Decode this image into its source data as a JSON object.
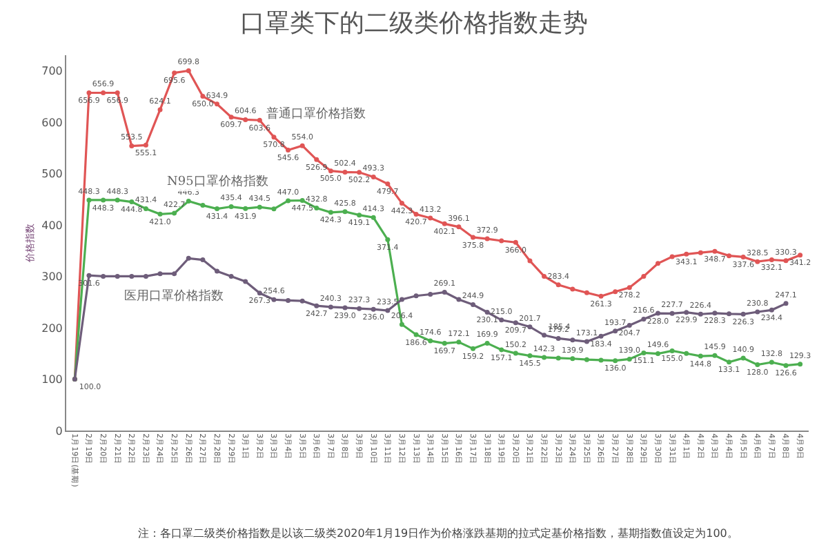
{
  "chart_data": {
    "type": "line",
    "title": "口罩类下的二级类价格指数走势",
    "ylabel": "价格指数",
    "categories": [
      "1月19日(基期)",
      "2月19日",
      "2月20日",
      "2月21日",
      "2月22日",
      "2月23日",
      "2月24日",
      "2月25日",
      "2月26日",
      "2月27日",
      "2月28日",
      "2月29日",
      "3月1日",
      "3月2日",
      "3月3日",
      "3月4日",
      "3月5日",
      "3月6日",
      "3月7日",
      "3月8日",
      "3月9日",
      "3月10日",
      "3月11日",
      "3月12日",
      "3月13日",
      "3月14日",
      "3月15日",
      "3月16日",
      "3月17日",
      "3月18日",
      "3月19日",
      "3月20日",
      "3月21日",
      "3月22日",
      "3月23日",
      "3月24日",
      "3月25日",
      "3月26日",
      "3月27日",
      "3月28日",
      "3月29日",
      "3月30日",
      "3月31日",
      "4月1日",
      "4月2日",
      "4月3日",
      "4月4日",
      "4月5日",
      "4月6日",
      "4月7日",
      "4月8日",
      "4月9日"
    ],
    "ylim": [
      0,
      730
    ],
    "yticks": [
      0,
      100,
      200,
      300,
      400,
      500,
      600,
      700
    ],
    "grid": false,
    "legend": false,
    "marker": "circle",
    "line_style": "solid",
    "series": [
      {
        "name": "普通口罩价格指数",
        "color": "#e05555",
        "values": [
          100.0,
          656.9,
          656.9,
          656.9,
          553.5,
          555.1,
          624.1,
          695.6,
          699.8,
          650.0,
          634.9,
          609.7,
          604.6,
          603.6,
          570.8,
          545.6,
          554.0,
          526.9,
          505.0,
          502.4,
          502.2,
          493.3,
          479.7,
          442.3,
          420.7,
          413.2,
          402.1,
          396.1,
          375.8,
          372.9,
          369,
          366.0,
          330,
          300,
          283.4,
          275,
          268,
          261.3,
          270,
          278.2,
          300,
          325,
          338,
          343.1,
          346,
          348.7,
          340,
          337.6,
          328.5,
          332.1,
          330.3,
          341.2
        ],
        "value_labels": [
          "100.0",
          "656.9",
          "656.9",
          "656.9",
          "553.5",
          "555.1",
          "624.1",
          "695.6",
          "699.8",
          "650.0",
          "634.9",
          "609.7",
          "604.6",
          "603.6",
          "570.8",
          "545.6",
          "554.0",
          "526.9",
          "505.0",
          "502.4",
          "502.2",
          "493.3",
          "479.7",
          "442.3",
          "420.7",
          "413.2",
          "402.1",
          "396.1",
          "375.8",
          "372.9",
          null,
          "366.0",
          null,
          null,
          "283.4",
          null,
          null,
          "261.3",
          null,
          "278.2",
          null,
          null,
          null,
          "343.1",
          null,
          "348.7",
          null,
          "337.6",
          "328.5",
          "332.1",
          "330.3",
          "341.2"
        ]
      },
      {
        "name": "N95口罩价格指数",
        "color": "#4caf50",
        "values": [
          100.0,
          448.3,
          448.3,
          448.3,
          444.8,
          431.4,
          421.0,
          422.7,
          446.3,
          438,
          431.4,
          435.4,
          431.9,
          434.5,
          431,
          447.0,
          447.5,
          432.8,
          424.3,
          425.8,
          419.1,
          414.3,
          371.4,
          206.4,
          186.6,
          174.6,
          169.7,
          172.1,
          159.2,
          169.9,
          157.1,
          150.2,
          145.5,
          142.3,
          141,
          139.9,
          138,
          137,
          136.0,
          139.0,
          151.1,
          149.6,
          155.0,
          150,
          144.8,
          145.9,
          133.1,
          140.9,
          128.0,
          132.8,
          126.6,
          129.3
        ],
        "value_labels": [
          null,
          "448.3",
          "448.3",
          "448.3",
          "444.8",
          "431.4",
          "421.0",
          "422.7",
          "446.3",
          null,
          "431.4",
          "435.4",
          "431.9",
          "434.5",
          null,
          "447.0",
          "447.5",
          "432.8",
          "424.3",
          "425.8",
          "419.1",
          "414.3",
          "371.4",
          "206.4",
          "186.6",
          "174.6",
          "169.7",
          "172.1",
          "159.2",
          "169.9",
          "157.1",
          "150.2",
          "145.5",
          "142.3",
          null,
          "139.9",
          null,
          null,
          "136.0",
          "139.0",
          "151.1",
          "149.6",
          "155.0",
          null,
          "144.8",
          "145.9",
          "133.1",
          "140.9",
          "128.0",
          "132.8",
          "126.6",
          "129.3"
        ]
      },
      {
        "name": "医用口罩价格指数",
        "color": "#6e5d7a",
        "values": [
          100.0,
          301.6,
          300,
          300,
          300,
          300,
          305,
          305,
          335,
          332,
          310,
          300,
          290,
          267.3,
          254.6,
          253,
          252,
          242.7,
          240.3,
          239.0,
          237.3,
          236.0,
          233.5,
          255,
          262,
          265,
          269.1,
          255,
          244.9,
          230.1,
          215.0,
          209.7,
          201.7,
          185.4,
          179.2,
          176,
          173.1,
          183.4,
          193.7,
          204.7,
          216.6,
          228.0,
          227.7,
          229.9,
          226.4,
          228.3,
          227,
          226.3,
          230.8,
          234.4,
          247.1,
          null
        ],
        "value_labels": [
          null,
          "301.6",
          null,
          null,
          null,
          null,
          null,
          null,
          null,
          null,
          null,
          null,
          null,
          "267.3",
          "254.6",
          null,
          null,
          "242.7",
          "240.3",
          "239.0",
          "237.3",
          "236.0",
          "233.5",
          null,
          null,
          null,
          "269.1",
          null,
          "244.9",
          "230.1",
          "215.0",
          "209.7",
          "201.7",
          "185.4",
          "179.2",
          null,
          "173.1",
          "183.4",
          "193.7",
          "204.7",
          "216.6",
          "228.0",
          "227.7",
          "229.9",
          "226.4",
          "228.3",
          null,
          "226.3",
          "230.8",
          "234.4",
          "247.1",
          null
        ]
      }
    ],
    "annotations": [
      "注：各口罩二级类价格指数是以该二级类2020年1月19日作为价格涨跌基期的拉式定基价格指数，基期指数值设定为100。"
    ]
  }
}
